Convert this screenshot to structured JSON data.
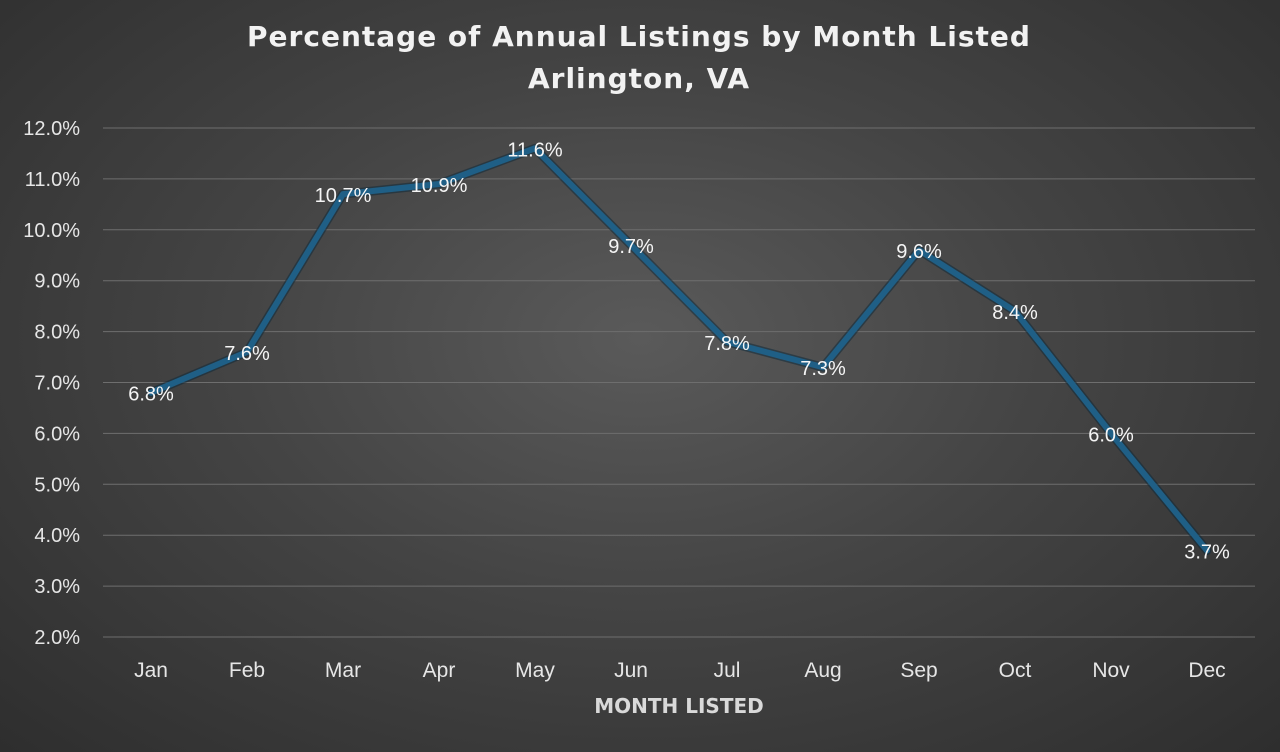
{
  "chart_data": {
    "type": "line",
    "title": "Percentage of Annual Listings by Month Listed",
    "subtitle": "Arlington, VA",
    "xlabel": "MONTH LISTED",
    "ylabel": "",
    "categories": [
      "Jan",
      "Feb",
      "Mar",
      "Apr",
      "May",
      "Jun",
      "Jul",
      "Aug",
      "Sep",
      "Oct",
      "Nov",
      "Dec"
    ],
    "values": [
      6.8,
      7.6,
      10.7,
      10.9,
      11.6,
      9.7,
      7.8,
      7.3,
      9.6,
      8.4,
      6.0,
      3.7
    ],
    "data_labels": [
      "6.8%",
      "7.6%",
      "10.7%",
      "10.9%",
      "11.6%",
      "9.7%",
      "7.8%",
      "7.3%",
      "9.6%",
      "8.4%",
      "6.0%",
      "3.7%"
    ],
    "ylim": [
      2.0,
      12.0
    ],
    "yticks": [
      "2.0%",
      "3.0%",
      "4.0%",
      "5.0%",
      "6.0%",
      "7.0%",
      "8.0%",
      "9.0%",
      "10.0%",
      "11.0%",
      "12.0%"
    ],
    "grid": true,
    "legend": "none",
    "line_color": "#1f5f86"
  }
}
